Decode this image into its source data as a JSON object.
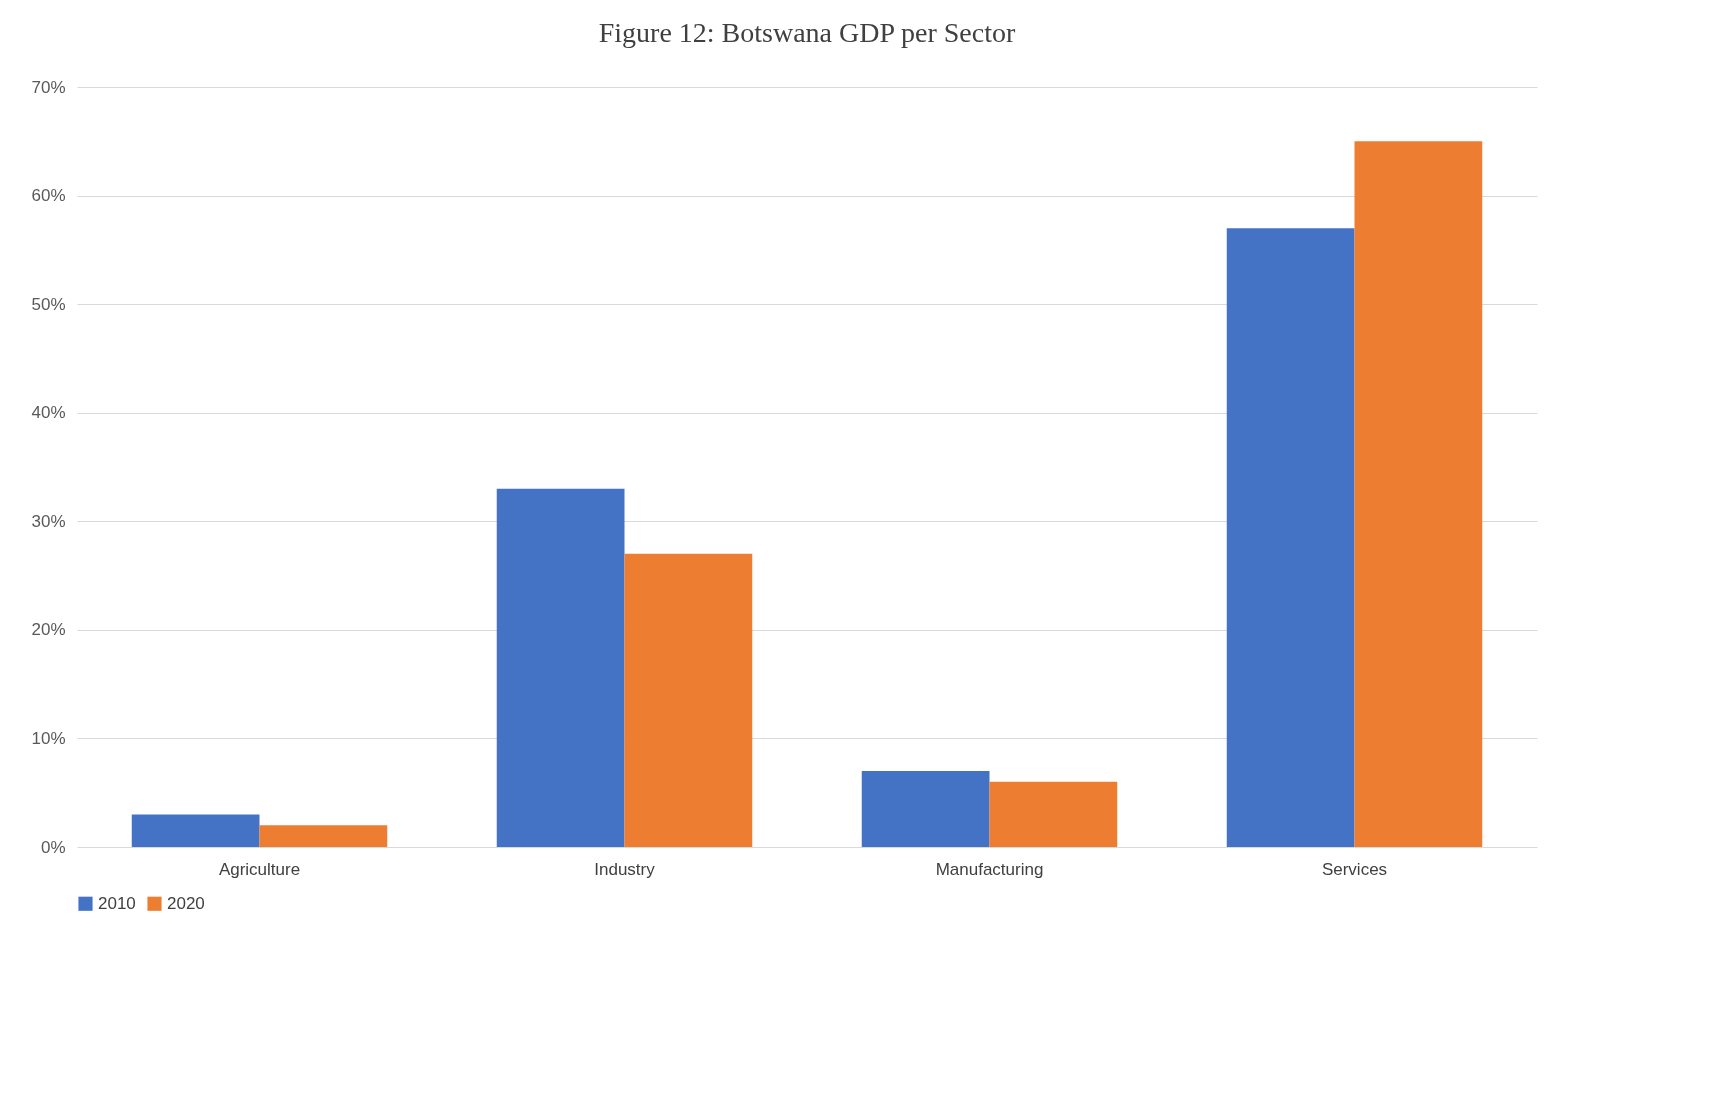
{
  "chart_data": {
    "type": "bar",
    "title": "Figure 12: Botswana GDP per Sector",
    "categories": [
      "Agriculture",
      "Industry",
      "Manufacturing",
      "Services"
    ],
    "series": [
      {
        "name": "2010",
        "color": "#4472c4",
        "values": [
          3,
          33,
          7,
          57
        ]
      },
      {
        "name": "2020",
        "color": "#ed7d31",
        "values": [
          2,
          27,
          6,
          65
        ]
      }
    ],
    "ylim": [
      0,
      70
    ],
    "yticks": [
      {
        "value": 0,
        "label": "0%"
      },
      {
        "value": 10,
        "label": "10%"
      },
      {
        "value": 20,
        "label": "20%"
      },
      {
        "value": 30,
        "label": "30%"
      },
      {
        "value": 40,
        "label": "40%"
      },
      {
        "value": 50,
        "label": "50%"
      },
      {
        "value": 60,
        "label": "60%"
      },
      {
        "value": 70,
        "label": "70%"
      }
    ],
    "grid": "y",
    "legend": "bottom"
  }
}
